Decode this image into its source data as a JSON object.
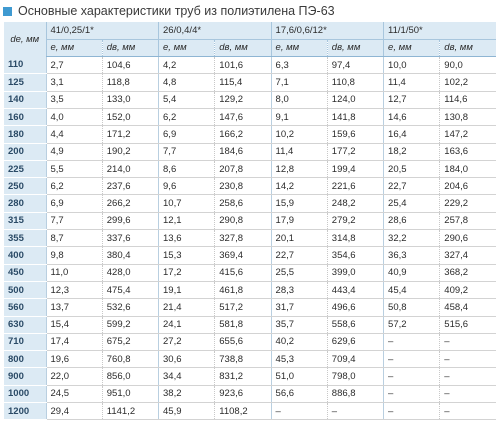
{
  "title": "Основные характеристики труб из полиэтилена ПЭ-63",
  "header": {
    "de_label": "dе, мм",
    "groups": [
      "41/0,25/1*",
      "26/0,4/4*",
      "17,6/0,6/12*",
      "11/1/50*"
    ],
    "e_label": "e, мм",
    "dv_label": "dв, мм"
  },
  "rows": [
    {
      "d": "110",
      "v": [
        "2,7",
        "104,6",
        "4,2",
        "101,6",
        "6,3",
        "97,4",
        "10,0",
        "90,0"
      ]
    },
    {
      "d": "125",
      "v": [
        "3,1",
        "118,8",
        "4,8",
        "115,4",
        "7,1",
        "110,8",
        "11,4",
        "102,2"
      ]
    },
    {
      "d": "140",
      "v": [
        "3,5",
        "133,0",
        "5,4",
        "129,2",
        "8,0",
        "124,0",
        "12,7",
        "114,6"
      ]
    },
    {
      "d": "160",
      "v": [
        "4,0",
        "152,0",
        "6,2",
        "147,6",
        "9,1",
        "141,8",
        "14,6",
        "130,8"
      ]
    },
    {
      "d": "180",
      "v": [
        "4,4",
        "171,2",
        "6,9",
        "166,2",
        "10,2",
        "159,6",
        "16,4",
        "147,2"
      ]
    },
    {
      "d": "200",
      "v": [
        "4,9",
        "190,2",
        "7,7",
        "184,6",
        "11,4",
        "177,2",
        "18,2",
        "163,6"
      ]
    },
    {
      "d": "225",
      "v": [
        "5,5",
        "214,0",
        "8,6",
        "207,8",
        "12,8",
        "199,4",
        "20,5",
        "184,0"
      ]
    },
    {
      "d": "250",
      "v": [
        "6,2",
        "237,6",
        "9,6",
        "230,8",
        "14,2",
        "221,6",
        "22,7",
        "204,6"
      ]
    },
    {
      "d": "280",
      "v": [
        "6,9",
        "266,2",
        "10,7",
        "258,6",
        "15,9",
        "248,2",
        "25,4",
        "229,2"
      ]
    },
    {
      "d": "315",
      "v": [
        "7,7",
        "299,6",
        "12,1",
        "290,8",
        "17,9",
        "279,2",
        "28,6",
        "257,8"
      ]
    },
    {
      "d": "355",
      "v": [
        "8,7",
        "337,6",
        "13,6",
        "327,8",
        "20,1",
        "314,8",
        "32,2",
        "290,6"
      ]
    },
    {
      "d": "400",
      "v": [
        "9,8",
        "380,4",
        "15,3",
        "369,4",
        "22,7",
        "354,6",
        "36,3",
        "327,4"
      ]
    },
    {
      "d": "450",
      "v": [
        "11,0",
        "428,0",
        "17,2",
        "415,6",
        "25,5",
        "399,0",
        "40,9",
        "368,2"
      ]
    },
    {
      "d": "500",
      "v": [
        "12,3",
        "475,4",
        "19,1",
        "461,8",
        "28,3",
        "443,4",
        "45,4",
        "409,2"
      ]
    },
    {
      "d": "560",
      "v": [
        "13,7",
        "532,6",
        "21,4",
        "517,2",
        "31,7",
        "496,6",
        "50,8",
        "458,4"
      ]
    },
    {
      "d": "630",
      "v": [
        "15,4",
        "599,2",
        "24,1",
        "581,8",
        "35,7",
        "558,6",
        "57,2",
        "515,6"
      ]
    },
    {
      "d": "710",
      "v": [
        "17,4",
        "675,2",
        "27,2",
        "655,6",
        "40,2",
        "629,6",
        "–",
        "–"
      ]
    },
    {
      "d": "800",
      "v": [
        "19,6",
        "760,8",
        "30,6",
        "738,8",
        "45,3",
        "709,4",
        "–",
        "–"
      ]
    },
    {
      "d": "900",
      "v": [
        "22,0",
        "856,0",
        "34,4",
        "831,2",
        "51,0",
        "798,0",
        "–",
        "–"
      ]
    },
    {
      "d": "1000",
      "v": [
        "24,5",
        "951,0",
        "38,2",
        "923,6",
        "56,6",
        "886,8",
        "–",
        "–"
      ]
    },
    {
      "d": "1200",
      "v": [
        "29,4",
        "1141,2",
        "45,9",
        "1108,2",
        "–",
        "–",
        "–",
        "–"
      ]
    }
  ]
}
